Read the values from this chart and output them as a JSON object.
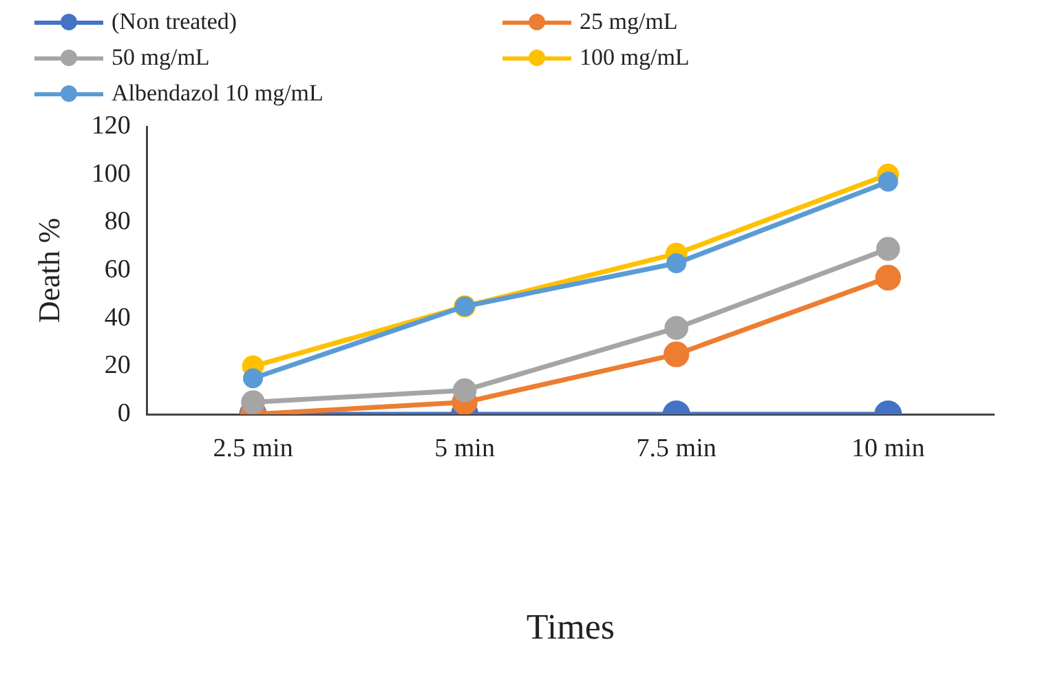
{
  "chart_data": {
    "type": "line",
    "xlabel": "Times",
    "ylabel": "Death %",
    "categories": [
      "2.5 min",
      "5 min",
      "7.5 min",
      "10 min"
    ],
    "series": [
      {
        "name": "(Non treated)",
        "color": "#4472c4",
        "values": [
          0,
          0,
          0,
          0
        ]
      },
      {
        "name": "25 mg/mL",
        "color": "#ed7d31",
        "values": [
          0,
          5,
          25,
          57
        ]
      },
      {
        "name": "50 mg/mL",
        "color": "#a5a5a5",
        "values": [
          5,
          10,
          36,
          69
        ]
      },
      {
        "name": "100 mg/mL",
        "color": "#ffc000",
        "values": [
          20,
          45,
          67,
          100
        ]
      },
      {
        "name": "Albendazol 10 mg/mL",
        "color": "#5b9bd5",
        "values": [
          15,
          45,
          63,
          97
        ]
      }
    ],
    "ylim": [
      0,
      120
    ],
    "yticks": [
      0,
      20,
      40,
      60,
      80,
      100,
      120
    ],
    "grid": false,
    "legend": "top",
    "marker": "circle",
    "line_style": "solid"
  }
}
